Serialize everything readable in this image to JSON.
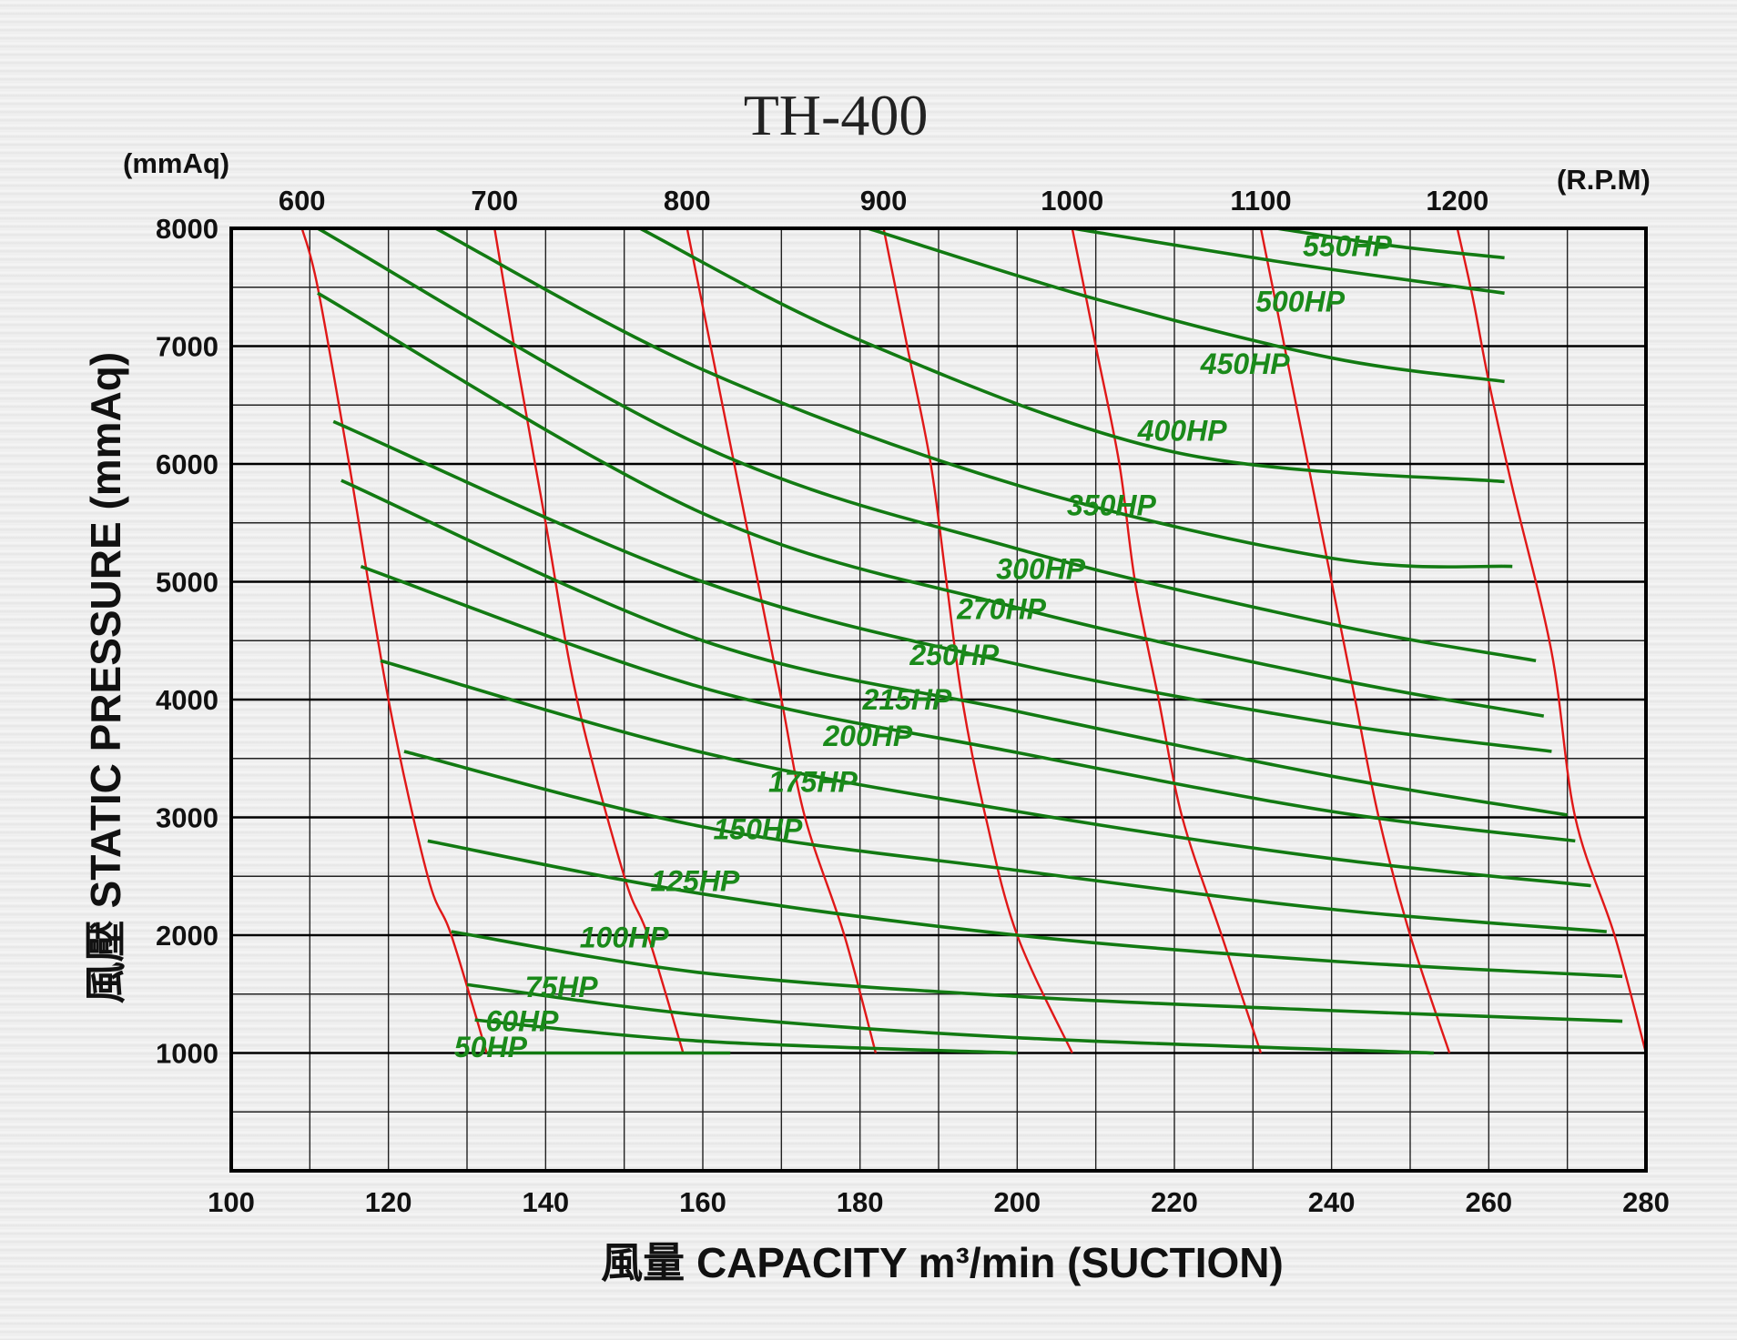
{
  "chart_data": {
    "type": "line",
    "title": "TH-400",
    "xlabel": "風量 CAPACITY m³/min (SUCTION)",
    "ylabel": "風壓 STATIC PRESSURE (mmAq)",
    "y_unit_top": "(mmAq)",
    "rpm_unit": "(R.P.M)",
    "xlim": [
      100,
      280
    ],
    "ylim": [
      0,
      8000
    ],
    "x_ticks": [
      100,
      120,
      140,
      160,
      180,
      200,
      220,
      240,
      260,
      280
    ],
    "y_ticks": [
      1000,
      2000,
      3000,
      4000,
      5000,
      6000,
      7000,
      8000
    ],
    "grid": true,
    "rpm_curves": [
      {
        "name": "600",
        "label": "600",
        "points": [
          [
            109,
            8000
          ],
          [
            111,
            7500
          ],
          [
            115,
            6000
          ],
          [
            120,
            4000
          ],
          [
            125,
            2500
          ],
          [
            128,
            2000
          ],
          [
            132.5,
            1000
          ]
        ]
      },
      {
        "name": "700",
        "label": "700",
        "points": [
          [
            133.5,
            8000
          ],
          [
            136,
            7000
          ],
          [
            140,
            5500
          ],
          [
            144,
            4000
          ],
          [
            150,
            2500
          ],
          [
            153,
            2000
          ],
          [
            157.5,
            1000
          ]
        ]
      },
      {
        "name": "800",
        "label": "800",
        "points": [
          [
            158,
            8000
          ],
          [
            161,
            7000
          ],
          [
            164,
            6000
          ],
          [
            167,
            5000
          ],
          [
            170,
            4000
          ],
          [
            173,
            3000
          ],
          [
            178,
            2000
          ],
          [
            182,
            1000
          ]
        ]
      },
      {
        "name": "900",
        "label": "900",
        "points": [
          [
            183,
            8000
          ],
          [
            186,
            7000
          ],
          [
            189,
            6000
          ],
          [
            191,
            5000
          ],
          [
            193,
            4000
          ],
          [
            196,
            3000
          ],
          [
            200,
            2000
          ],
          [
            207,
            1000
          ]
        ]
      },
      {
        "name": "1000",
        "label": "1000",
        "points": [
          [
            207,
            8000
          ],
          [
            210,
            7000
          ],
          [
            213,
            6000
          ],
          [
            215,
            5000
          ],
          [
            218,
            4000
          ],
          [
            221,
            3000
          ],
          [
            226,
            2000
          ],
          [
            231,
            1000
          ]
        ]
      },
      {
        "name": "1100",
        "label": "1100",
        "points": [
          [
            231,
            8000
          ],
          [
            234,
            7000
          ],
          [
            237,
            6000
          ],
          [
            240,
            5000
          ],
          [
            243,
            4000
          ],
          [
            246,
            3000
          ],
          [
            250,
            2000
          ],
          [
            255,
            1000
          ]
        ]
      },
      {
        "name": "1200",
        "label": "1200",
        "points": [
          [
            256,
            8000
          ],
          [
            258,
            7400
          ],
          [
            260,
            6700
          ],
          [
            263,
            5800
          ],
          [
            268,
            4400
          ],
          [
            271,
            3000
          ],
          [
            276,
            2000
          ],
          [
            280,
            1000
          ]
        ]
      }
    ],
    "series": [
      {
        "name": "50HP",
        "label": "50HP",
        "points": [
          [
            132.5,
            1000
          ],
          [
            163.5,
            1000
          ]
        ]
      },
      {
        "name": "60HP",
        "label": "60HP",
        "points": [
          [
            131,
            1280
          ],
          [
            160,
            1100
          ],
          [
            200,
            1000
          ]
        ]
      },
      {
        "name": "75HP",
        "label": "75HP",
        "points": [
          [
            130,
            1580
          ],
          [
            160,
            1320
          ],
          [
            200,
            1130
          ],
          [
            253,
            1000
          ]
        ]
      },
      {
        "name": "100HP",
        "label": "100HP",
        "points": [
          [
            128,
            2030
          ],
          [
            160,
            1680
          ],
          [
            200,
            1480
          ],
          [
            240,
            1360
          ],
          [
            277,
            1270
          ]
        ]
      },
      {
        "name": "125HP",
        "label": "125HP",
        "points": [
          [
            125,
            2800
          ],
          [
            160,
            2350
          ],
          [
            200,
            2000
          ],
          [
            240,
            1780
          ],
          [
            277,
            1650
          ]
        ]
      },
      {
        "name": "150HP",
        "label": "150HP",
        "points": [
          [
            122,
            3560
          ],
          [
            160,
            2920
          ],
          [
            200,
            2550
          ],
          [
            240,
            2220
          ],
          [
            275,
            2030
          ]
        ]
      },
      {
        "name": "175HP",
        "label": "175HP",
        "points": [
          [
            119,
            4330
          ],
          [
            160,
            3550
          ],
          [
            200,
            3050
          ],
          [
            240,
            2650
          ],
          [
            273,
            2420
          ]
        ]
      },
      {
        "name": "200HP",
        "label": "200HP",
        "points": [
          [
            116.5,
            5130
          ],
          [
            160,
            4100
          ],
          [
            200,
            3550
          ],
          [
            240,
            3050
          ],
          [
            271,
            2800
          ]
        ]
      },
      {
        "name": "215HP",
        "label": "215HP",
        "points": [
          [
            114,
            5860
          ],
          [
            160,
            4500
          ],
          [
            200,
            3900
          ],
          [
            240,
            3350
          ],
          [
            270,
            3020
          ]
        ]
      },
      {
        "name": "250HP",
        "label": "250HP",
        "points": [
          [
            113,
            6360
          ],
          [
            160,
            5000
          ],
          [
            200,
            4300
          ],
          [
            240,
            3800
          ],
          [
            268,
            3560
          ]
        ]
      },
      {
        "name": "270HP",
        "label": "270HP",
        "points": [
          [
            111,
            7450
          ],
          [
            160,
            5580
          ],
          [
            200,
            4780
          ],
          [
            240,
            4180
          ],
          [
            267,
            3860
          ]
        ]
      },
      {
        "name": "300HP",
        "label": "300HP",
        "points": [
          [
            111,
            8000
          ],
          [
            160,
            6150
          ],
          [
            200,
            5280
          ],
          [
            240,
            4640
          ],
          [
            266,
            4330
          ]
        ]
      },
      {
        "name": "350HP",
        "label": "350HP",
        "points": [
          [
            126,
            8000
          ],
          [
            160,
            6800
          ],
          [
            200,
            5820
          ],
          [
            240,
            5200
          ],
          [
            263,
            5130
          ]
        ]
      },
      {
        "name": "400HP",
        "label": "400HP",
        "points": [
          [
            152,
            8000
          ],
          [
            180,
            7050
          ],
          [
            220,
            6100
          ],
          [
            262,
            5850
          ]
        ]
      },
      {
        "name": "450HP",
        "label": "450HP",
        "points": [
          [
            181,
            8000
          ],
          [
            210,
            7400
          ],
          [
            240,
            6900
          ],
          [
            262,
            6700
          ]
        ]
      },
      {
        "name": "500HP",
        "label": "500HP",
        "points": [
          [
            207,
            8000
          ],
          [
            235,
            7700
          ],
          [
            262,
            7450
          ]
        ]
      },
      {
        "name": "550HP",
        "label": "550HP",
        "points": [
          [
            233,
            8000
          ],
          [
            248,
            7850
          ],
          [
            262,
            7750
          ]
        ]
      }
    ],
    "hp_label_positions": [
      {
        "label": "550HP",
        "x": 242,
        "y": 7850
      },
      {
        "label": "500HP",
        "x": 236,
        "y": 7380
      },
      {
        "label": "450HP",
        "x": 229,
        "y": 6850
      },
      {
        "label": "400HP",
        "x": 221,
        "y": 6280
      },
      {
        "label": "350HP",
        "x": 212,
        "y": 5650
      },
      {
        "label": "300HP",
        "x": 203,
        "y": 5110
      },
      {
        "label": "270HP",
        "x": 198,
        "y": 4770
      },
      {
        "label": "250HP",
        "x": 192,
        "y": 4380
      },
      {
        "label": "215HP",
        "x": 186,
        "y": 4000
      },
      {
        "label": "200HP",
        "x": 181,
        "y": 3690
      },
      {
        "label": "175HP",
        "x": 174,
        "y": 3300
      },
      {
        "label": "150HP",
        "x": 167,
        "y": 2900
      },
      {
        "label": "125HP",
        "x": 159,
        "y": 2460
      },
      {
        "label": "100HP",
        "x": 150,
        "y": 1980
      },
      {
        "label": "75HP",
        "x": 142,
        "y": 1560
      },
      {
        "label": "60HP",
        "x": 137,
        "y": 1270
      },
      {
        "label": "50HP",
        "x": 133,
        "y": 1050
      }
    ]
  }
}
